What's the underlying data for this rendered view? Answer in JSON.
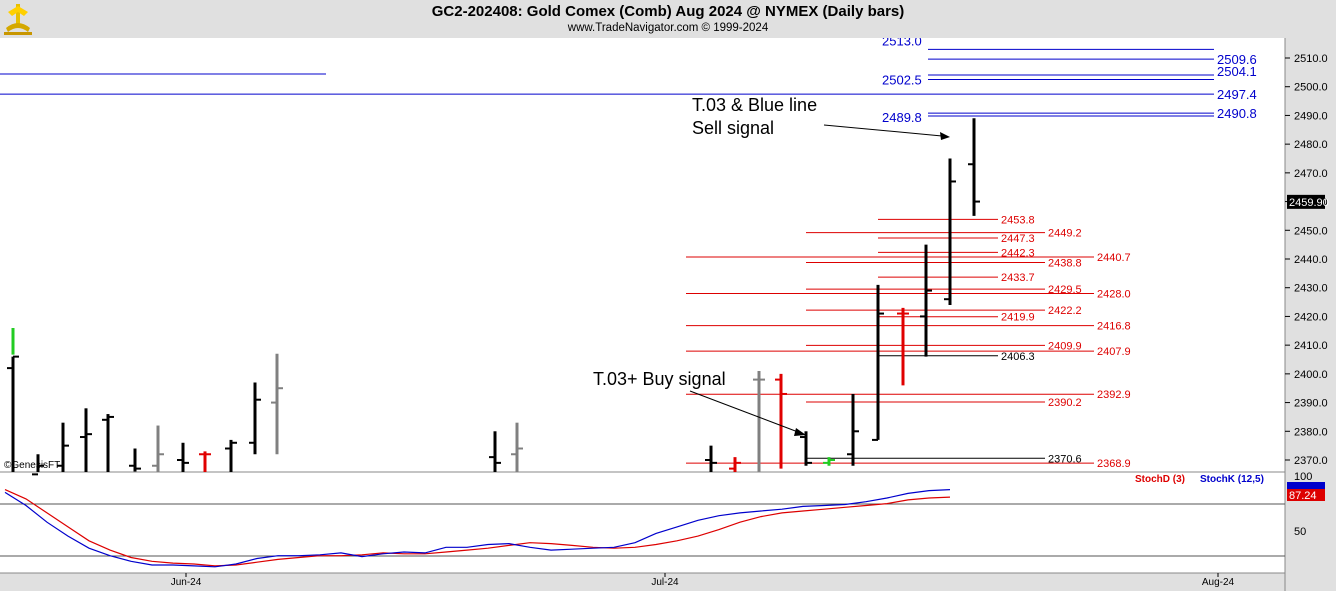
{
  "header": {
    "title": "GC2-202408:  Gold Comex (Comb) Aug 2024 @ NYMEX  (Daily bars)",
    "subtitle": "www.TradeNavigator.com © 1999-2024",
    "watermark": "©GenesisFT"
  },
  "colors": {
    "up": "#000000",
    "down_red": "#e00000",
    "gray": "#808080",
    "green": "#22cc22",
    "blue": "#0000cc",
    "red_line": "#dd0000",
    "stoch_blue": "#0000cc",
    "stoch_red": "#dd0000"
  },
  "chart_data": [
    {
      "type": "ohlc",
      "title": "GC2-202408:  Gold Comex (Comb) Aug 2024 @ NYMEX  (Daily bars)",
      "y_axis": {
        "ticks": [
          2370.0,
          2380.0,
          2390.0,
          2400.0,
          2410.0,
          2420.0,
          2430.0,
          2440.0,
          2450.0,
          2460.0,
          2470.0,
          2480.0,
          2490.0,
          2500.0,
          2510.0
        ],
        "range": [
          2366,
          2514
        ]
      },
      "x_axis": {
        "ticks": [
          "Jun-24",
          "Jul-24",
          "Aug-24"
        ]
      },
      "last_price_label": "2459.90",
      "bars": [
        {
          "h": 2406,
          "l": 2360,
          "o": 2402,
          "c": 2406,
          "color": "up"
        },
        {
          "h": 2372,
          "l": 2355,
          "o": 2365,
          "c": 2368,
          "color": "up"
        },
        {
          "h": 2383,
          "l": 2360,
          "o": 2368,
          "c": 2375,
          "color": "up"
        },
        {
          "h": 2388,
          "l": 2355,
          "o": 2378,
          "c": 2379,
          "color": "up"
        },
        {
          "h": 2386,
          "l": 2360,
          "o": 2384,
          "c": 2385,
          "color": "up"
        },
        {
          "h": 2374,
          "l": 2366,
          "o": 2368,
          "c": 2367,
          "color": "up"
        },
        {
          "h": 2382,
          "l": 2362,
          "o": 2368,
          "c": 2372,
          "color": "gray"
        },
        {
          "h": 2376,
          "l": 2360,
          "o": 2370,
          "c": 2369,
          "color": "up"
        },
        {
          "h": 2373,
          "l": 2362,
          "o": 2372,
          "c": 2372,
          "color": "down_red"
        },
        {
          "h": 2377,
          "l": 2362,
          "o": 2374,
          "c": 2376,
          "color": "up"
        },
        {
          "h": 2397,
          "l": 2372,
          "o": 2376,
          "c": 2391,
          "color": "up"
        },
        {
          "h": 2407,
          "l": 2372,
          "o": 2390,
          "c": 2395,
          "color": "gray"
        },
        {
          "h": 2380,
          "l": 2364,
          "o": 2371,
          "c": 2369,
          "color": "up"
        },
        {
          "h": 2383,
          "l": 2360,
          "o": 2372,
          "c": 2374,
          "color": "gray"
        },
        {
          "h": 2375,
          "l": 2365,
          "o": 2370,
          "c": 2369,
          "color": "up"
        },
        {
          "h": 2371,
          "l": 2358,
          "o": 2367,
          "c": 2369,
          "color": "down_red"
        },
        {
          "h": 2401,
          "l": 2366,
          "o": 2398,
          "c": 2398,
          "color": "gray"
        },
        {
          "h": 2400,
          "l": 2367,
          "o": 2398,
          "c": 2393,
          "color": "down_red"
        },
        {
          "h": 2380,
          "l": 2368,
          "o": 2378,
          "c": 2369,
          "color": "up"
        },
        {
          "h": 2371,
          "l": 2368,
          "o": 2369,
          "c": 2370,
          "color": "green"
        },
        {
          "h": 2393,
          "l": 2368,
          "o": 2372,
          "c": 2380,
          "color": "up"
        },
        {
          "h": 2431,
          "l": 2377,
          "o": 2377,
          "c": 2421,
          "color": "up"
        },
        {
          "h": 2423,
          "l": 2396,
          "o": 2421,
          "c": 2421,
          "color": "down_red"
        },
        {
          "h": 2445,
          "l": 2406,
          "o": 2420,
          "c": 2429,
          "color": "up"
        },
        {
          "h": 2475,
          "l": 2424,
          "o": 2426,
          "c": 2467,
          "color": "up"
        },
        {
          "h": 2489,
          "l": 2455,
          "o": 2473,
          "c": 2460,
          "color": "up"
        }
      ],
      "levels_blue": [
        {
          "price": 2513.0,
          "label": "2513.0"
        },
        {
          "price": 2509.6,
          "label": "2509.6"
        },
        {
          "price": 2504.1,
          "label": "2504.1"
        },
        {
          "price": 2502.5,
          "label": "2502.5"
        },
        {
          "price": 2497.4,
          "label": "2497.4"
        },
        {
          "price": 2490.8,
          "label": "2490.8"
        },
        {
          "price": 2489.8,
          "label": "2489.8"
        }
      ],
      "levels_red": [
        {
          "price": 2453.8,
          "label": "2453.8"
        },
        {
          "price": 2449.2,
          "label": "2449.2"
        },
        {
          "price": 2447.3,
          "label": "2447.3"
        },
        {
          "price": 2442.3,
          "label": "2442.3"
        },
        {
          "price": 2440.7,
          "label": "2440.7"
        },
        {
          "price": 2438.8,
          "label": "2438.8"
        },
        {
          "price": 2433.7,
          "label": "2433.7"
        },
        {
          "price": 2429.5,
          "label": "2429.5"
        },
        {
          "price": 2428.0,
          "label": "2428.0"
        },
        {
          "price": 2422.2,
          "label": "2422.2"
        },
        {
          "price": 2419.9,
          "label": "2419.9"
        },
        {
          "price": 2416.8,
          "label": "2416.8"
        },
        {
          "price": 2409.9,
          "label": "2409.9"
        },
        {
          "price": 2407.9,
          "label": "2407.9"
        },
        {
          "price": 2392.9,
          "label": "2392.9"
        },
        {
          "price": 2390.2,
          "label": "2390.2"
        },
        {
          "price": 2368.9,
          "label": "2368.9"
        }
      ],
      "levels_black": [
        {
          "price": 2406.3,
          "label": "2406.3"
        },
        {
          "price": 2370.6,
          "label": "2370.6"
        }
      ],
      "annotations": [
        {
          "text": "T.03 & Blue line",
          "line2": "Sell signal"
        },
        {
          "text": "T.03+ Buy signal"
        }
      ]
    },
    {
      "type": "line",
      "title": "Stochastic",
      "y_axis": {
        "ticks": [
          50,
          100
        ],
        "range": [
          0,
          100
        ]
      },
      "last_value_label": "87.24",
      "series": [
        {
          "name": "StochD (3)",
          "color": "red",
          "values": [
            95,
            85,
            70,
            55,
            40,
            30,
            22,
            18,
            16,
            15,
            13,
            14,
            17,
            20,
            22,
            24,
            24,
            25,
            27,
            26,
            26,
            28,
            30,
            32,
            35,
            38,
            37,
            35,
            33,
            32,
            33,
            36,
            40,
            45,
            52,
            60,
            66,
            70,
            72,
            74,
            76,
            78,
            80,
            84,
            86,
            87
          ]
        },
        {
          "name": "StochK (12,5)",
          "color": "blue",
          "values": [
            92,
            78,
            60,
            45,
            32,
            24,
            18,
            14,
            14,
            13,
            12,
            15,
            21,
            24,
            24,
            25,
            27,
            23,
            26,
            28,
            27,
            33,
            33,
            36,
            37,
            33,
            30,
            31,
            32,
            33,
            38,
            48,
            55,
            62,
            67,
            70,
            72,
            74,
            77,
            78,
            79,
            82,
            86,
            91,
            94,
            95
          ]
        }
      ]
    }
  ]
}
